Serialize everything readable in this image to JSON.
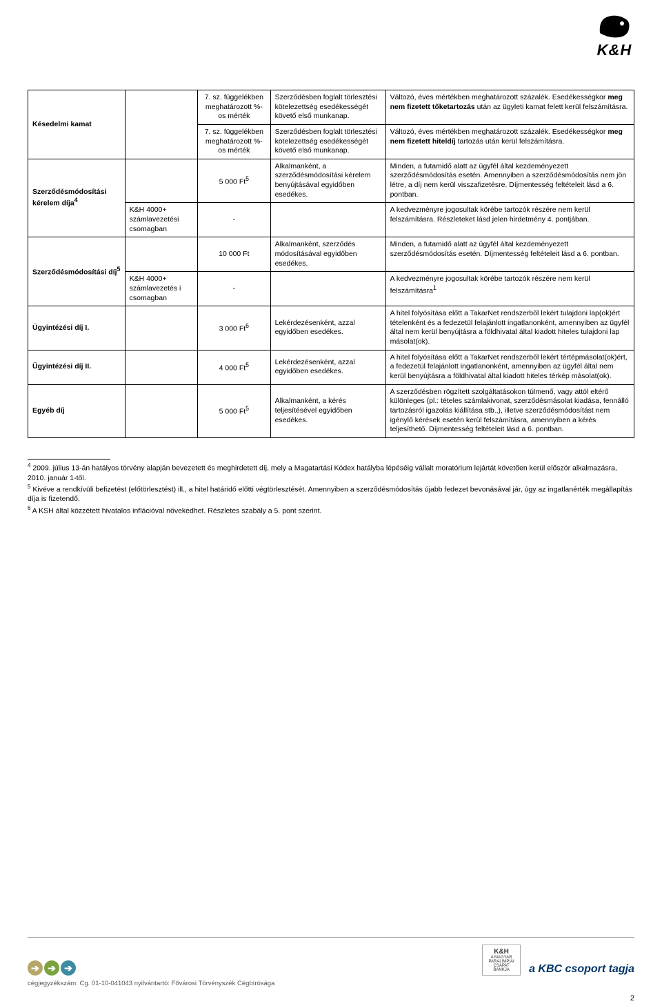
{
  "logo": {
    "brand": "K&H"
  },
  "table": {
    "rows": [
      {
        "c1": "Késedelmi kamat",
        "c1_rowspan": 2,
        "c2": "",
        "c2_rowspan": 2,
        "c3": "7. sz. függelékben meghatározott %-os mérték",
        "c4": "Szerződésben foglalt törlesztési kötelezettség esedékességét követő első munkanap.",
        "c5_html": "Változó, éves mértékben meghatározott százalék. Esedékességkor <b>meg nem fizetett tőketartozás</b> után az ügyleti kamat felett kerül felszámításra."
      },
      {
        "c3": "7. sz. függelékben meghatározott %-os mérték",
        "c4": "Szerződésben foglalt törlesztési kötelezettség esedékességét követő első munkanap.",
        "c5_html": "Változó, éves mértékben meghatározott százalék. Esedékességkor <b>meg nem fizetett hiteldíj</b> tartozás után kerül felszámításra."
      },
      {
        "c1_html": "Szerződésmódosítási kérelem díja<sup>4</sup>",
        "c1_rowspan": 2,
        "c2": "",
        "c3_html": "5 000 Ft<sup>5</sup>",
        "c4": "Alkalmanként, a szerződésmódosítási kérelem benyújtásával egyidőben esedékes.",
        "c5": "Minden, a futamidő alatt az ügyfél által kezdeményezett szerződésmódosítás esetén. Amennyiben a szerződésmódosítás nem jön létre, a díj nem kerül visszafizetésre. Díjmentesség feltételeit lásd a 6. pontban."
      },
      {
        "c2": "K&H 4000+ számlavezetési csomagban",
        "c3": "-",
        "c4": "",
        "c5": "A kedvezményre jogosultak körébe tartozók részére nem kerül felszámításra. Részleteket lásd jelen hirdetmény 4. pontjában."
      },
      {
        "c1_html": "Szerződésmódosítási díj<sup>5</sup>",
        "c1_rowspan": 2,
        "c2": "",
        "c3": "10 000 Ft",
        "c4": "Alkalmanként, szerződés módosításával egyidőben esedékes.",
        "c5": "Minden, a futamidő alatt az ügyfél által kezdeményezett szerződésmódosítás esetén. Díjmentesség feltételeit lásd a 6. pontban."
      },
      {
        "c2": "K&H 4000+ számlavezetés i csomagban",
        "c3": "-",
        "c4": "",
        "c5_html": "A kedvezményre jogosultak körébe tartozók részére nem kerül felszámításra<sup>1</sup>"
      },
      {
        "c1": "Ügyintézési díj I.",
        "c2": "",
        "c3_html": "3 000 Ft<sup>6</sup>",
        "c4": "Lekérdezésenként, azzal egyidőben esedékes.",
        "c5": "A hitel folyósítása előtt a TakarNet rendszerből lekért tulajdoni lap(ok)ért tételenként és a fedezetül felajánlott ingatlanonként, amennyiben az ügyfél által nem kerül benyújtásra a földhivatal által kiadott hiteles tulajdoni lap másolat(ok)."
      },
      {
        "c1": "Ügyintézési díj II.",
        "c2": "",
        "c3_html": "4 000 Ft<sup>5</sup>",
        "c4": "Lekérdezésenként, azzal egyidőben esedékes.",
        "c5": "A hitel folyósítása előtt a TakarNet rendszerből lekért tértépmásolat(ok)ért, a fedezetül felajánlott ingatlanonként, amennyiben az ügyfél által nem kerül benyújtásra a földhivatal által kiadott hiteles térkép másolat(ok)."
      },
      {
        "c1": "Egyéb díj",
        "c2": "",
        "c3_html": "5 000 Ft<sup>5</sup>",
        "c4": "Alkalmanként, a kérés teljesítésével egyidőben esedékes.",
        "c5": "A szerződésben rögzített szolgáltatásokon túlmenő, vagy attól eltérő különleges (pl.: tételes számlakivonat, szerződésmásolat kiadása, fennálló tartozásról igazolás kiállítása stb.,), illetve szerződésmódosítást nem igénylő kérések esetén kerül felszámításra, amennyiben a kérés teljesíthető. Díjmentesség feltételeit lásd a 6. pontban."
      }
    ]
  },
  "footnotes": [
    "<sup>4</sup> 2009. július 13-án hatályos törvény alapján bevezetett és meghirdetett díj, mely a Magatartási Kódex hatályba lépéséig vállalt moratórium lejártát követően kerül először alkalmazásra, 2010. január 1-től.",
    "<sup>5</sup> Kivéve a rendkívüli befizetést (előtörlesztést) ill., a hitel határidő előtti végtörlesztését. Amennyiben a szerződésmódosítás újabb fedezet bevonásával jár, úgy az ingatlanérték megállapítás díja is fizetendő.",
    "<sup>6</sup> A KSH által közzétett hivatalos inflációval növekedhet. Részletes szabály a 5. pont szerint."
  ],
  "footer": {
    "arrow_colors": [
      "#b5a76a",
      "#7aa23d",
      "#3d8ba2"
    ],
    "reg_text": "cégjegyzékszám: Cg. 01-10-041043  nyilvántartó: Fővárosi Törvényszék Cégbírósága",
    "tagline": "a KBC csoport tagja",
    "paralimpia_lines": [
      "K&H",
      "A MAGYAR",
      "PARALIMPIAI",
      "CSAPAT BANKJA"
    ]
  },
  "page_number": "2"
}
